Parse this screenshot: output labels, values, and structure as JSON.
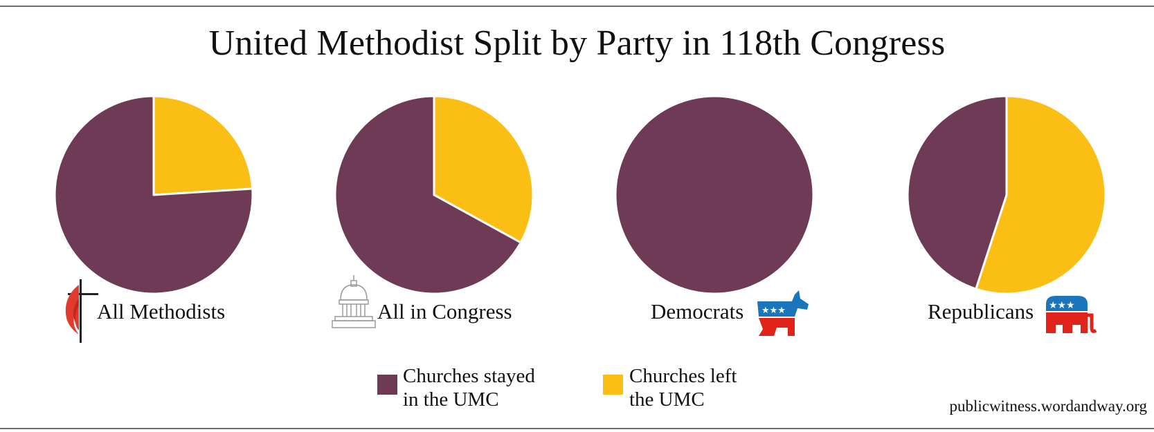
{
  "title": "United Methodist Split by Party in 118th Congress",
  "colors": {
    "stayed": "#6e3a55",
    "left": "#fbbe14"
  },
  "legend": {
    "stayed_line1": "Churches stayed",
    "stayed_line2": "in the UMC",
    "left_line1": "Churches left",
    "left_line2": "the UMC"
  },
  "credit": "publicwitness.wordandway.org",
  "chart_data": [
    {
      "type": "pie",
      "caption": "All Methodists",
      "icon": "cross-and-flame-icon",
      "categories": [
        "Churches stayed in the UMC",
        "Churches left the UMC"
      ],
      "values": [
        76,
        24
      ]
    },
    {
      "type": "pie",
      "caption": "All in Congress",
      "icon": "capitol-icon",
      "categories": [
        "Churches stayed in the UMC",
        "Churches left the UMC"
      ],
      "values": [
        67,
        33
      ]
    },
    {
      "type": "pie",
      "caption": "Democrats",
      "icon": "donkey-icon",
      "categories": [
        "Churches stayed in the UMC",
        "Churches left the UMC"
      ],
      "values": [
        100,
        0
      ]
    },
    {
      "type": "pie",
      "caption": "Republicans",
      "icon": "elephant-icon",
      "categories": [
        "Churches stayed in the UMC",
        "Churches left the UMC"
      ],
      "values": [
        45,
        55
      ]
    }
  ]
}
